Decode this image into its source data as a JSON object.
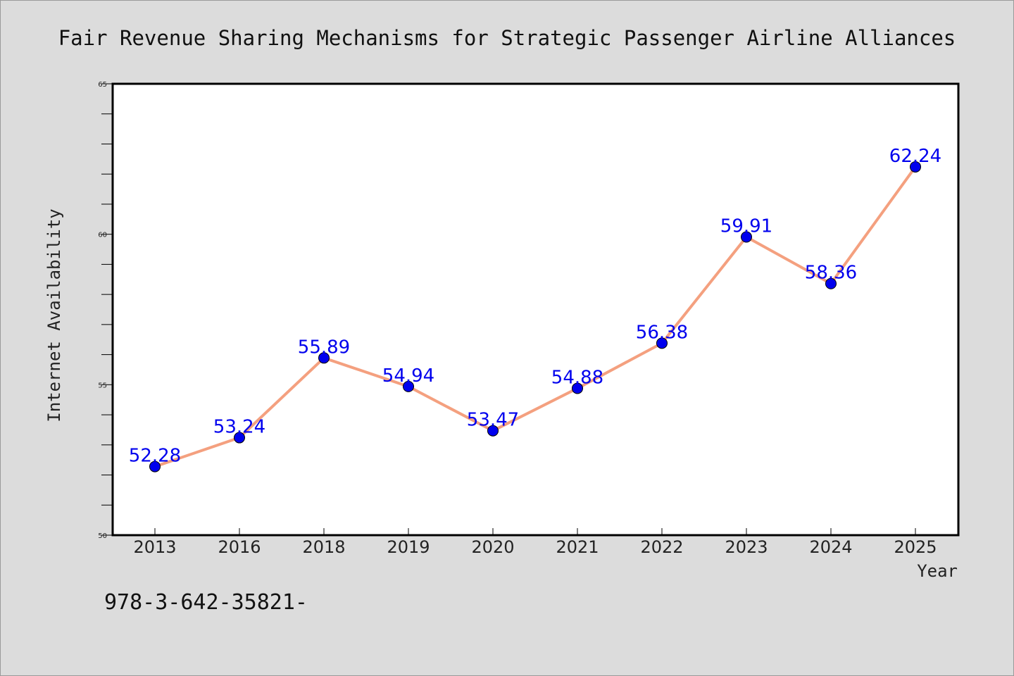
{
  "chart_data": {
    "type": "line",
    "title": "Fair Revenue Sharing Mechanisms for Strategic Passenger Airline Alliances",
    "xlabel": "Year",
    "ylabel": "Internet Availability",
    "categories": [
      "2013",
      "2016",
      "2018",
      "2019",
      "2020",
      "2021",
      "2022",
      "2023",
      "2024",
      "2025"
    ],
    "series": [
      {
        "values": [
          52.28,
          53.24,
          55.89,
          54.94,
          53.47,
          54.88,
          56.38,
          59.91,
          58.36,
          62.24
        ],
        "line_color": "#f4a07f",
        "marker_color": "#0000ee"
      }
    ],
    "ylim": [
      50,
      65
    ],
    "yticks": [
      50,
      55,
      60,
      65
    ],
    "y_minor_step": 1,
    "data_labels": [
      "52.28",
      "53.24",
      "55.89",
      "54.94",
      "53.47",
      "54.88",
      "56.38",
      "59.91",
      "58.36",
      "62.24"
    ],
    "grid": false,
    "legend": "none"
  },
  "footnote": "978-3-642-35821-",
  "colors": {
    "background": "#dcdcdc",
    "plot_background": "#ffffff",
    "label_color": "#0000ee"
  }
}
